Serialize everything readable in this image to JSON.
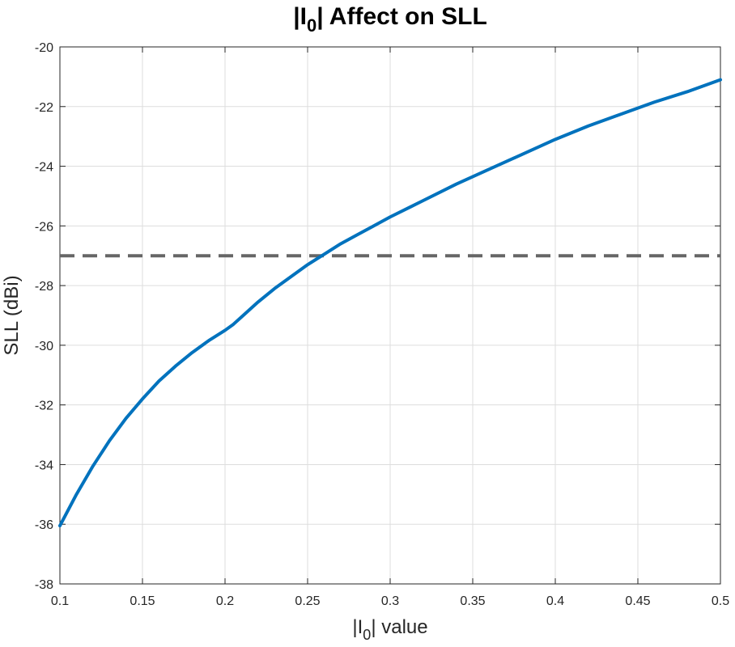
{
  "chart_data": {
    "type": "line",
    "title": {
      "pre": "|I",
      "sub": "0",
      "post": "| Affect on SLL"
    },
    "xlabel": {
      "pre": "|I",
      "sub": "0",
      "post": "| value"
    },
    "ylabel": "SLL (dBi)",
    "xlim": [
      0.1,
      0.5
    ],
    "ylim": [
      -38,
      -20
    ],
    "xticks": [
      0.1,
      0.15,
      0.2,
      0.25,
      0.3,
      0.35,
      0.4,
      0.45,
      0.5
    ],
    "xtick_labels": [
      "0.1",
      "0.15",
      "0.2",
      "0.25",
      "0.3",
      "0.35",
      "0.4",
      "0.45",
      "0.5"
    ],
    "yticks": [
      -38,
      -36,
      -34,
      -32,
      -30,
      -28,
      -26,
      -24,
      -22,
      -20
    ],
    "ytick_labels": [
      "-38",
      "-36",
      "-34",
      "-32",
      "-30",
      "-28",
      "-26",
      "-24",
      "-22",
      "-20"
    ],
    "grid": true,
    "series": [
      {
        "color": "#0072bd",
        "style": "solid",
        "x": [
          0.1,
          0.11,
          0.12,
          0.13,
          0.14,
          0.15,
          0.16,
          0.17,
          0.18,
          0.19,
          0.2,
          0.205,
          0.21,
          0.22,
          0.23,
          0.24,
          0.25,
          0.26,
          0.27,
          0.28,
          0.29,
          0.3,
          0.32,
          0.34,
          0.35,
          0.36,
          0.38,
          0.4,
          0.42,
          0.44,
          0.45,
          0.46,
          0.48,
          0.5
        ],
        "y": [
          -36.05,
          -35.0,
          -34.05,
          -33.2,
          -32.45,
          -31.8,
          -31.2,
          -30.7,
          -30.25,
          -29.85,
          -29.5,
          -29.3,
          -29.05,
          -28.55,
          -28.1,
          -27.7,
          -27.3,
          -26.95,
          -26.6,
          -26.3,
          -26.0,
          -25.7,
          -25.15,
          -24.6,
          -24.35,
          -24.1,
          -23.6,
          -23.1,
          -22.65,
          -22.25,
          -22.05,
          -21.85,
          -21.5,
          -21.1
        ]
      },
      {
        "color": "#666666",
        "style": "dashed",
        "x": [
          0.1,
          0.5
        ],
        "y": [
          -27,
          -27
        ]
      }
    ]
  }
}
